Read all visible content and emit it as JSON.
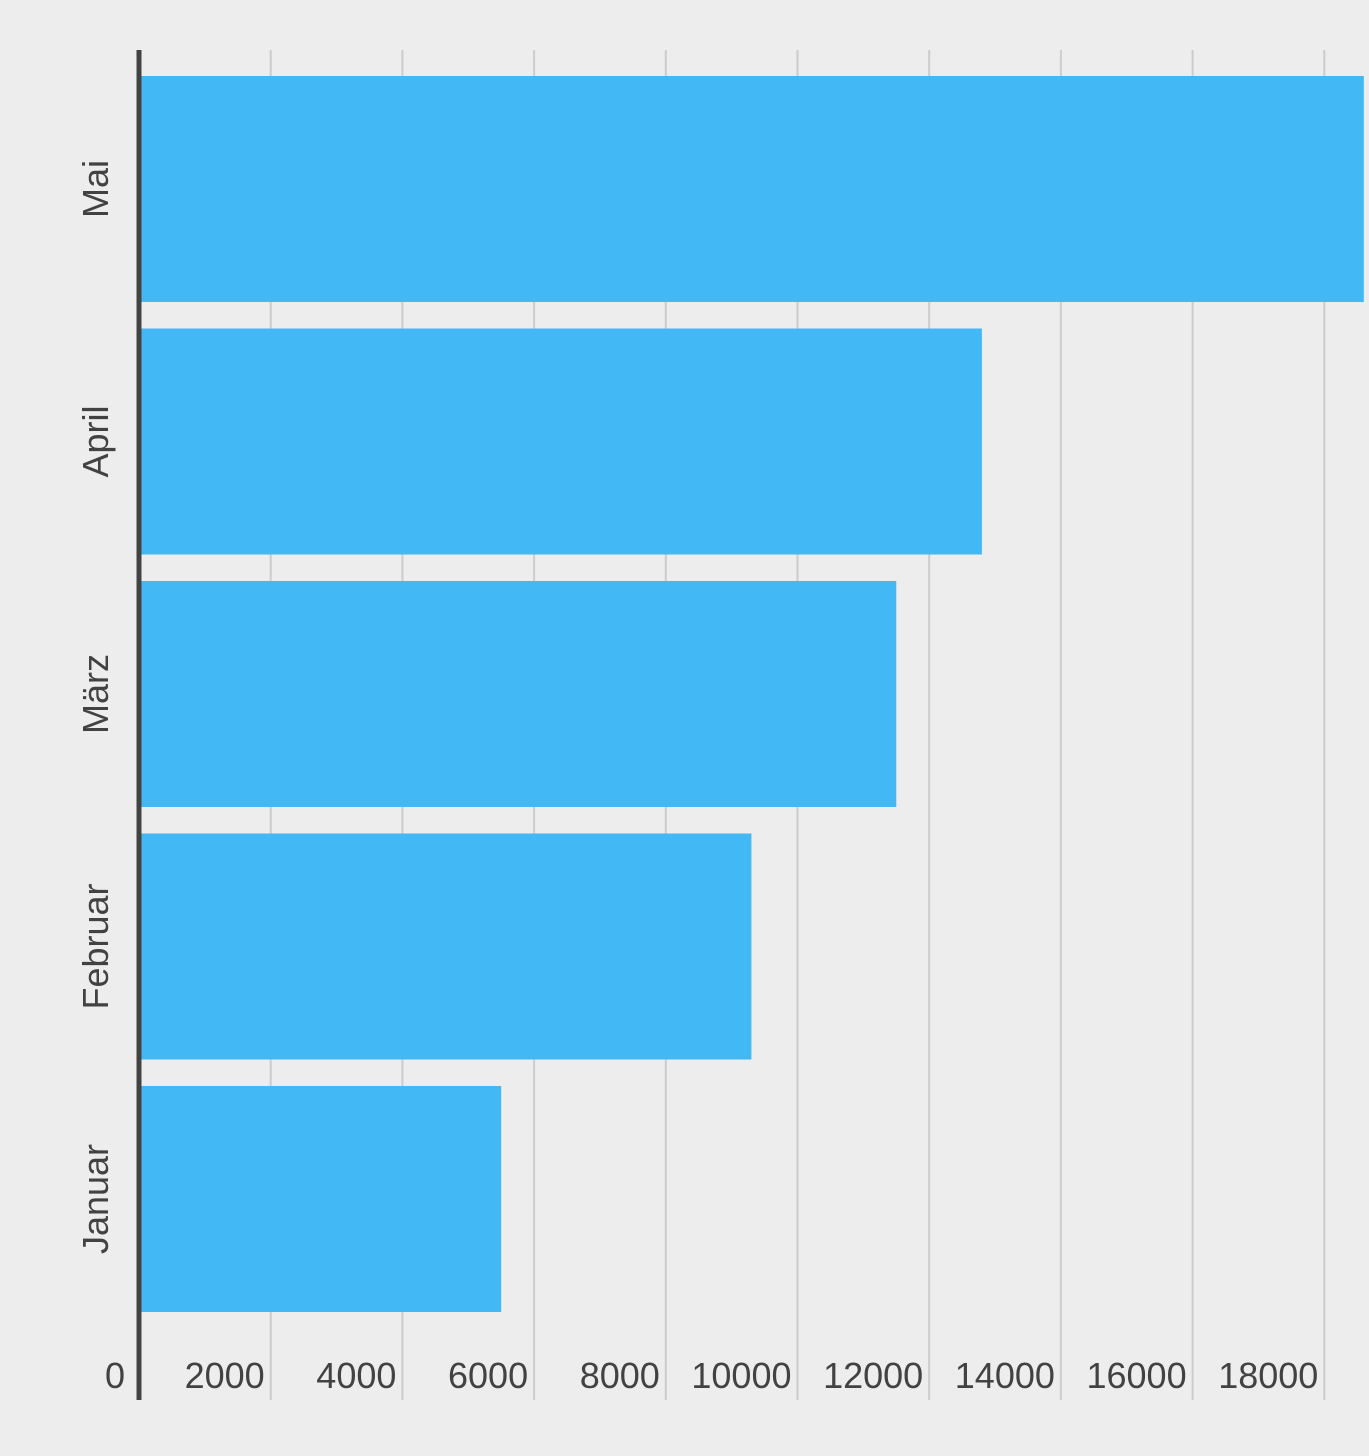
{
  "chart_data": {
    "type": "bar",
    "orientation": "horizontal",
    "title": "",
    "xlabel": "",
    "ylabel": "",
    "categories": [
      "Januar",
      "Februar",
      "März",
      "April",
      "Mai"
    ],
    "values": [
      5500,
      9300,
      11500,
      12800,
      18600
    ],
    "xlim": [
      0,
      20000
    ],
    "x_ticks": [
      0,
      2000,
      4000,
      6000,
      8000,
      10000,
      12000,
      14000,
      16000,
      18000
    ],
    "x_tick_labels": [
      "0",
      "2000",
      "4000",
      "6000",
      "8000",
      "10000",
      "12000",
      "14000",
      "16000",
      "18000"
    ],
    "grid": true,
    "legend": "none",
    "bar_color": "#42b8f5",
    "grid_color": "#cccccc",
    "axis_color": "#424242",
    "background": "#ededed"
  }
}
